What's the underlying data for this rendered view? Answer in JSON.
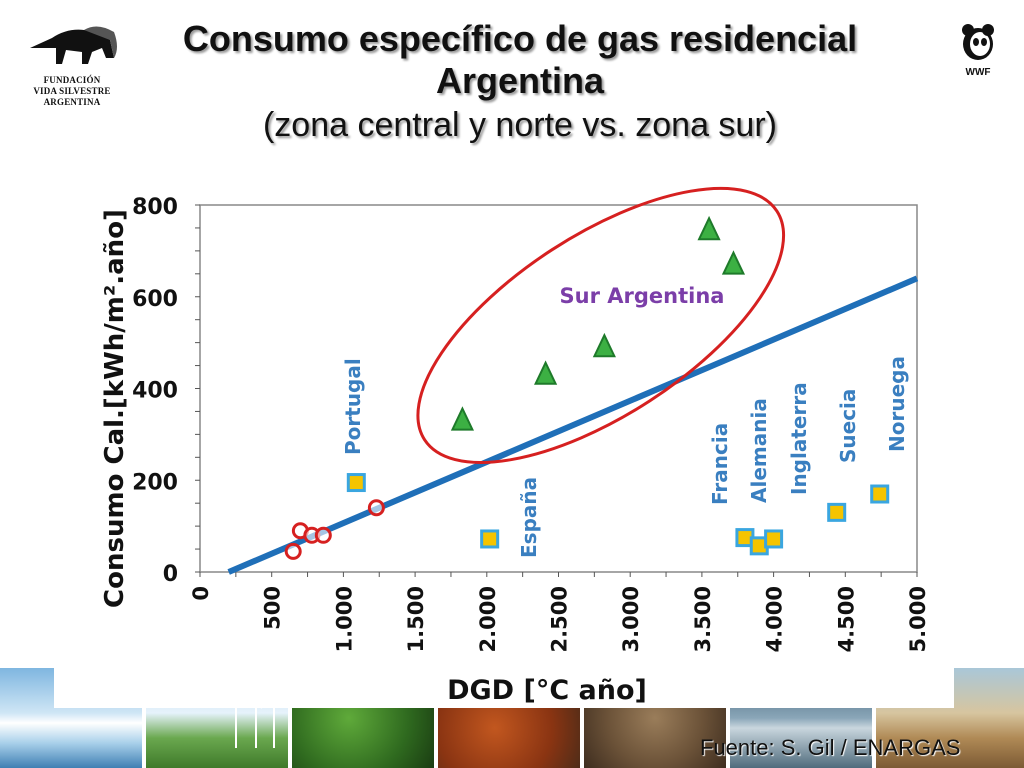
{
  "header": {
    "title_line1": "Consumo específico de gas residencial",
    "title_line2": "Argentina",
    "subtitle": "(zona central y norte vs. zona sur)"
  },
  "logos": {
    "left_org_line1": "FUNDACIÓN",
    "left_org_line2": "VIDA SILVESTRE",
    "left_org_line3": "ARGENTINA",
    "right_org": "WWF"
  },
  "footer": {
    "source": "Fuente: S. Gil / ENARGAS"
  },
  "colors": {
    "trend_line": "#1f6fb8",
    "ellipse": "#d62020",
    "triangle_fill": "#3cb043",
    "triangle_stroke": "#1e7a2a",
    "circle_stroke": "#d62020",
    "square_fill": "#f5c400",
    "square_stroke": "#3aa6e0",
    "country_label": "#3a7fc0",
    "sur_label": "#7b3ea8"
  },
  "chart_data": {
    "type": "scatter",
    "title": "",
    "xlabel": "DGD [°C año]",
    "ylabel": "Consumo Cal.[kWh/m².año]",
    "xlim": [
      0,
      5000
    ],
    "ylim": [
      0,
      800
    ],
    "x_tick_labels": [
      "0",
      "500",
      "1.000",
      "1.500",
      "2.000",
      "2.500",
      "3.000",
      "3.500",
      "4.000",
      "4.500",
      "5.000"
    ],
    "x_tick_values": [
      0,
      500,
      1000,
      1500,
      2000,
      2500,
      3000,
      3500,
      4000,
      4500,
      5000
    ],
    "y_tick_labels": [
      "0",
      "200",
      "400",
      "600",
      "800"
    ],
    "y_tick_values": [
      0,
      200,
      400,
      600,
      800
    ],
    "trend_line": {
      "x": [
        200,
        5000
      ],
      "y": [
        0,
        640
      ]
    },
    "series": [
      {
        "name": "Sur Argentina",
        "marker": "triangle",
        "points": [
          {
            "x": 1830,
            "y": 330
          },
          {
            "x": 2410,
            "y": 430
          },
          {
            "x": 2820,
            "y": 490
          },
          {
            "x": 3550,
            "y": 745
          },
          {
            "x": 3720,
            "y": 670
          }
        ]
      },
      {
        "marker": "circle",
        "points": [
          {
            "x": 650,
            "y": 45
          },
          {
            "x": 700,
            "y": 90
          },
          {
            "x": 780,
            "y": 80
          },
          {
            "x": 860,
            "y": 80
          },
          {
            "x": 1230,
            "y": 140
          }
        ]
      },
      {
        "marker": "square",
        "points": [
          {
            "x": 1090,
            "y": 195,
            "label": "Portugal"
          },
          {
            "x": 2020,
            "y": 72,
            "label": "España"
          },
          {
            "x": 3800,
            "y": 75,
            "label": "Francia"
          },
          {
            "x": 3900,
            "y": 57,
            "label": "Alemania"
          },
          {
            "x": 4000,
            "y": 72,
            "label": "Inglaterra"
          },
          {
            "x": 4440,
            "y": 130,
            "label": "Suecia"
          },
          {
            "x": 4740,
            "y": 170,
            "label": "Noruega"
          }
        ]
      }
    ],
    "ellipse_annotation": "Sur Argentina"
  }
}
